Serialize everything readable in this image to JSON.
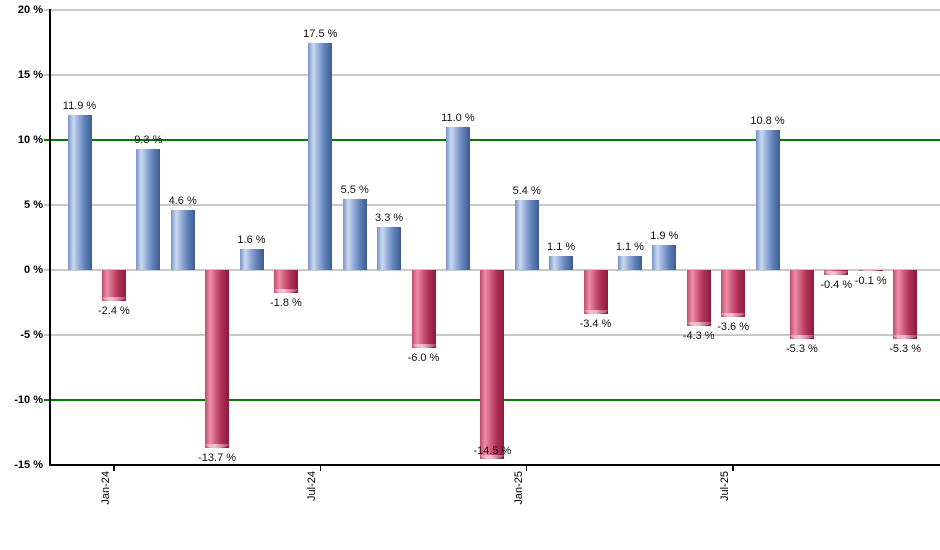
{
  "chart_data": {
    "type": "bar",
    "title": "",
    "xlabel": "",
    "ylabel": "",
    "values": [
      11.9,
      -2.4,
      9.3,
      4.6,
      -13.7,
      1.6,
      -1.8,
      17.5,
      5.5,
      3.3,
      -6.0,
      11.0,
      -14.5,
      5.4,
      1.1,
      -3.4,
      1.1,
      1.9,
      -4.3,
      -3.6,
      10.8,
      -5.3,
      -0.4,
      -0.1,
      -5.3
    ],
    "bar_labels": [
      "11.9 %",
      "-2.4 %",
      "9.3 %",
      "4.6 %",
      "-13.7 %",
      "1.6 %",
      "-1.8 %",
      "17.5 %",
      "5.5 %",
      "3.3 %",
      "-6.0 %",
      "11.0 %",
      "-14.5 %",
      "5.4 %",
      "1.1 %",
      "-3.4 %",
      "1.1 %",
      "1.9 %",
      "-4.3 %",
      "-3.6 %",
      "10.8 %",
      "-5.3 %",
      "-0.4 %",
      "-0.1 %",
      "-5.3 %"
    ],
    "x_ticks": [
      {
        "bar_index": 1,
        "label": "Jan-24"
      },
      {
        "bar_index": 7,
        "label": "Jul-24"
      },
      {
        "bar_index": 13,
        "label": "Jan-25"
      },
      {
        "bar_index": 19,
        "label": "Jul-25"
      }
    ],
    "y_ticks": [
      {
        "value": 20,
        "label": "20 %"
      },
      {
        "value": 15,
        "label": "15 %"
      },
      {
        "value": 10,
        "label": "10 %"
      },
      {
        "value": 5,
        "label": "5 %"
      },
      {
        "value": 0,
        "label": "0 %"
      },
      {
        "value": -5,
        "label": "-5 %"
      },
      {
        "value": -10,
        "label": "-10 %"
      },
      {
        "value": -15,
        "label": "-15 %"
      }
    ],
    "ylim": [
      -15,
      20
    ],
    "grid": true,
    "legend_position": "none",
    "reference_lines": [
      {
        "value": 10,
        "color": "#067a06"
      },
      {
        "value": -10,
        "color": "#067a06"
      }
    ],
    "colors": {
      "positive_bar_gradient": [
        "#7593c7",
        "#cbd9f0",
        "#93acd8",
        "#6181b9",
        "#3c5c90"
      ],
      "negative_bar_gradient": [
        "#c04a6c",
        "#ec8fa5",
        "#ce5c7c",
        "#ad3055",
        "#8b1a3d"
      ],
      "gridline": "#c9c9c9",
      "axis": "#000000",
      "reference_line": "#067a06"
    }
  }
}
